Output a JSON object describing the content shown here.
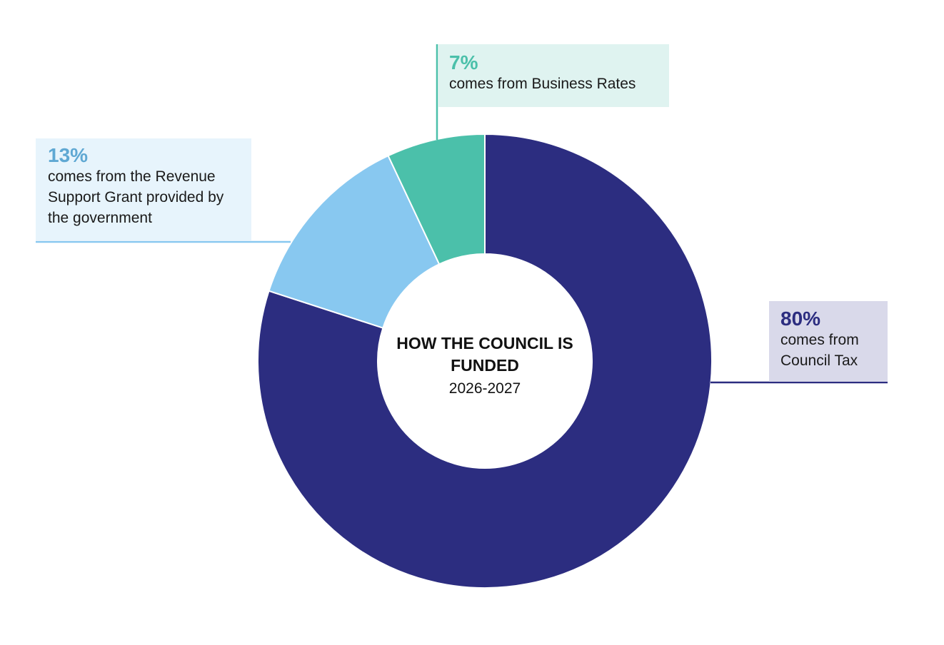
{
  "chart_data": {
    "type": "pie",
    "variant": "donut",
    "title": "HOW THE COUNCIL IS FUNDED",
    "subtitle": "2026-2027",
    "slices": [
      {
        "pct_label": "80%",
        "value": 80,
        "desc": "comes from Council Tax",
        "color": "#2c2d80",
        "label_bg": "#d9d9ea",
        "label_color": "#2c2d80"
      },
      {
        "pct_label": "13%",
        "value": 13,
        "desc": "comes from the Revenue Support Grant provided by the government",
        "color": "#88c8f0",
        "label_bg": "#e7f4fc",
        "label_color": "#5fa8d3"
      },
      {
        "pct_label": "7%",
        "value": 7,
        "desc": "comes from Business Rates",
        "color": "#4bc0aa",
        "label_bg": "#dff3f0",
        "label_color": "#4bc0aa"
      }
    ]
  }
}
